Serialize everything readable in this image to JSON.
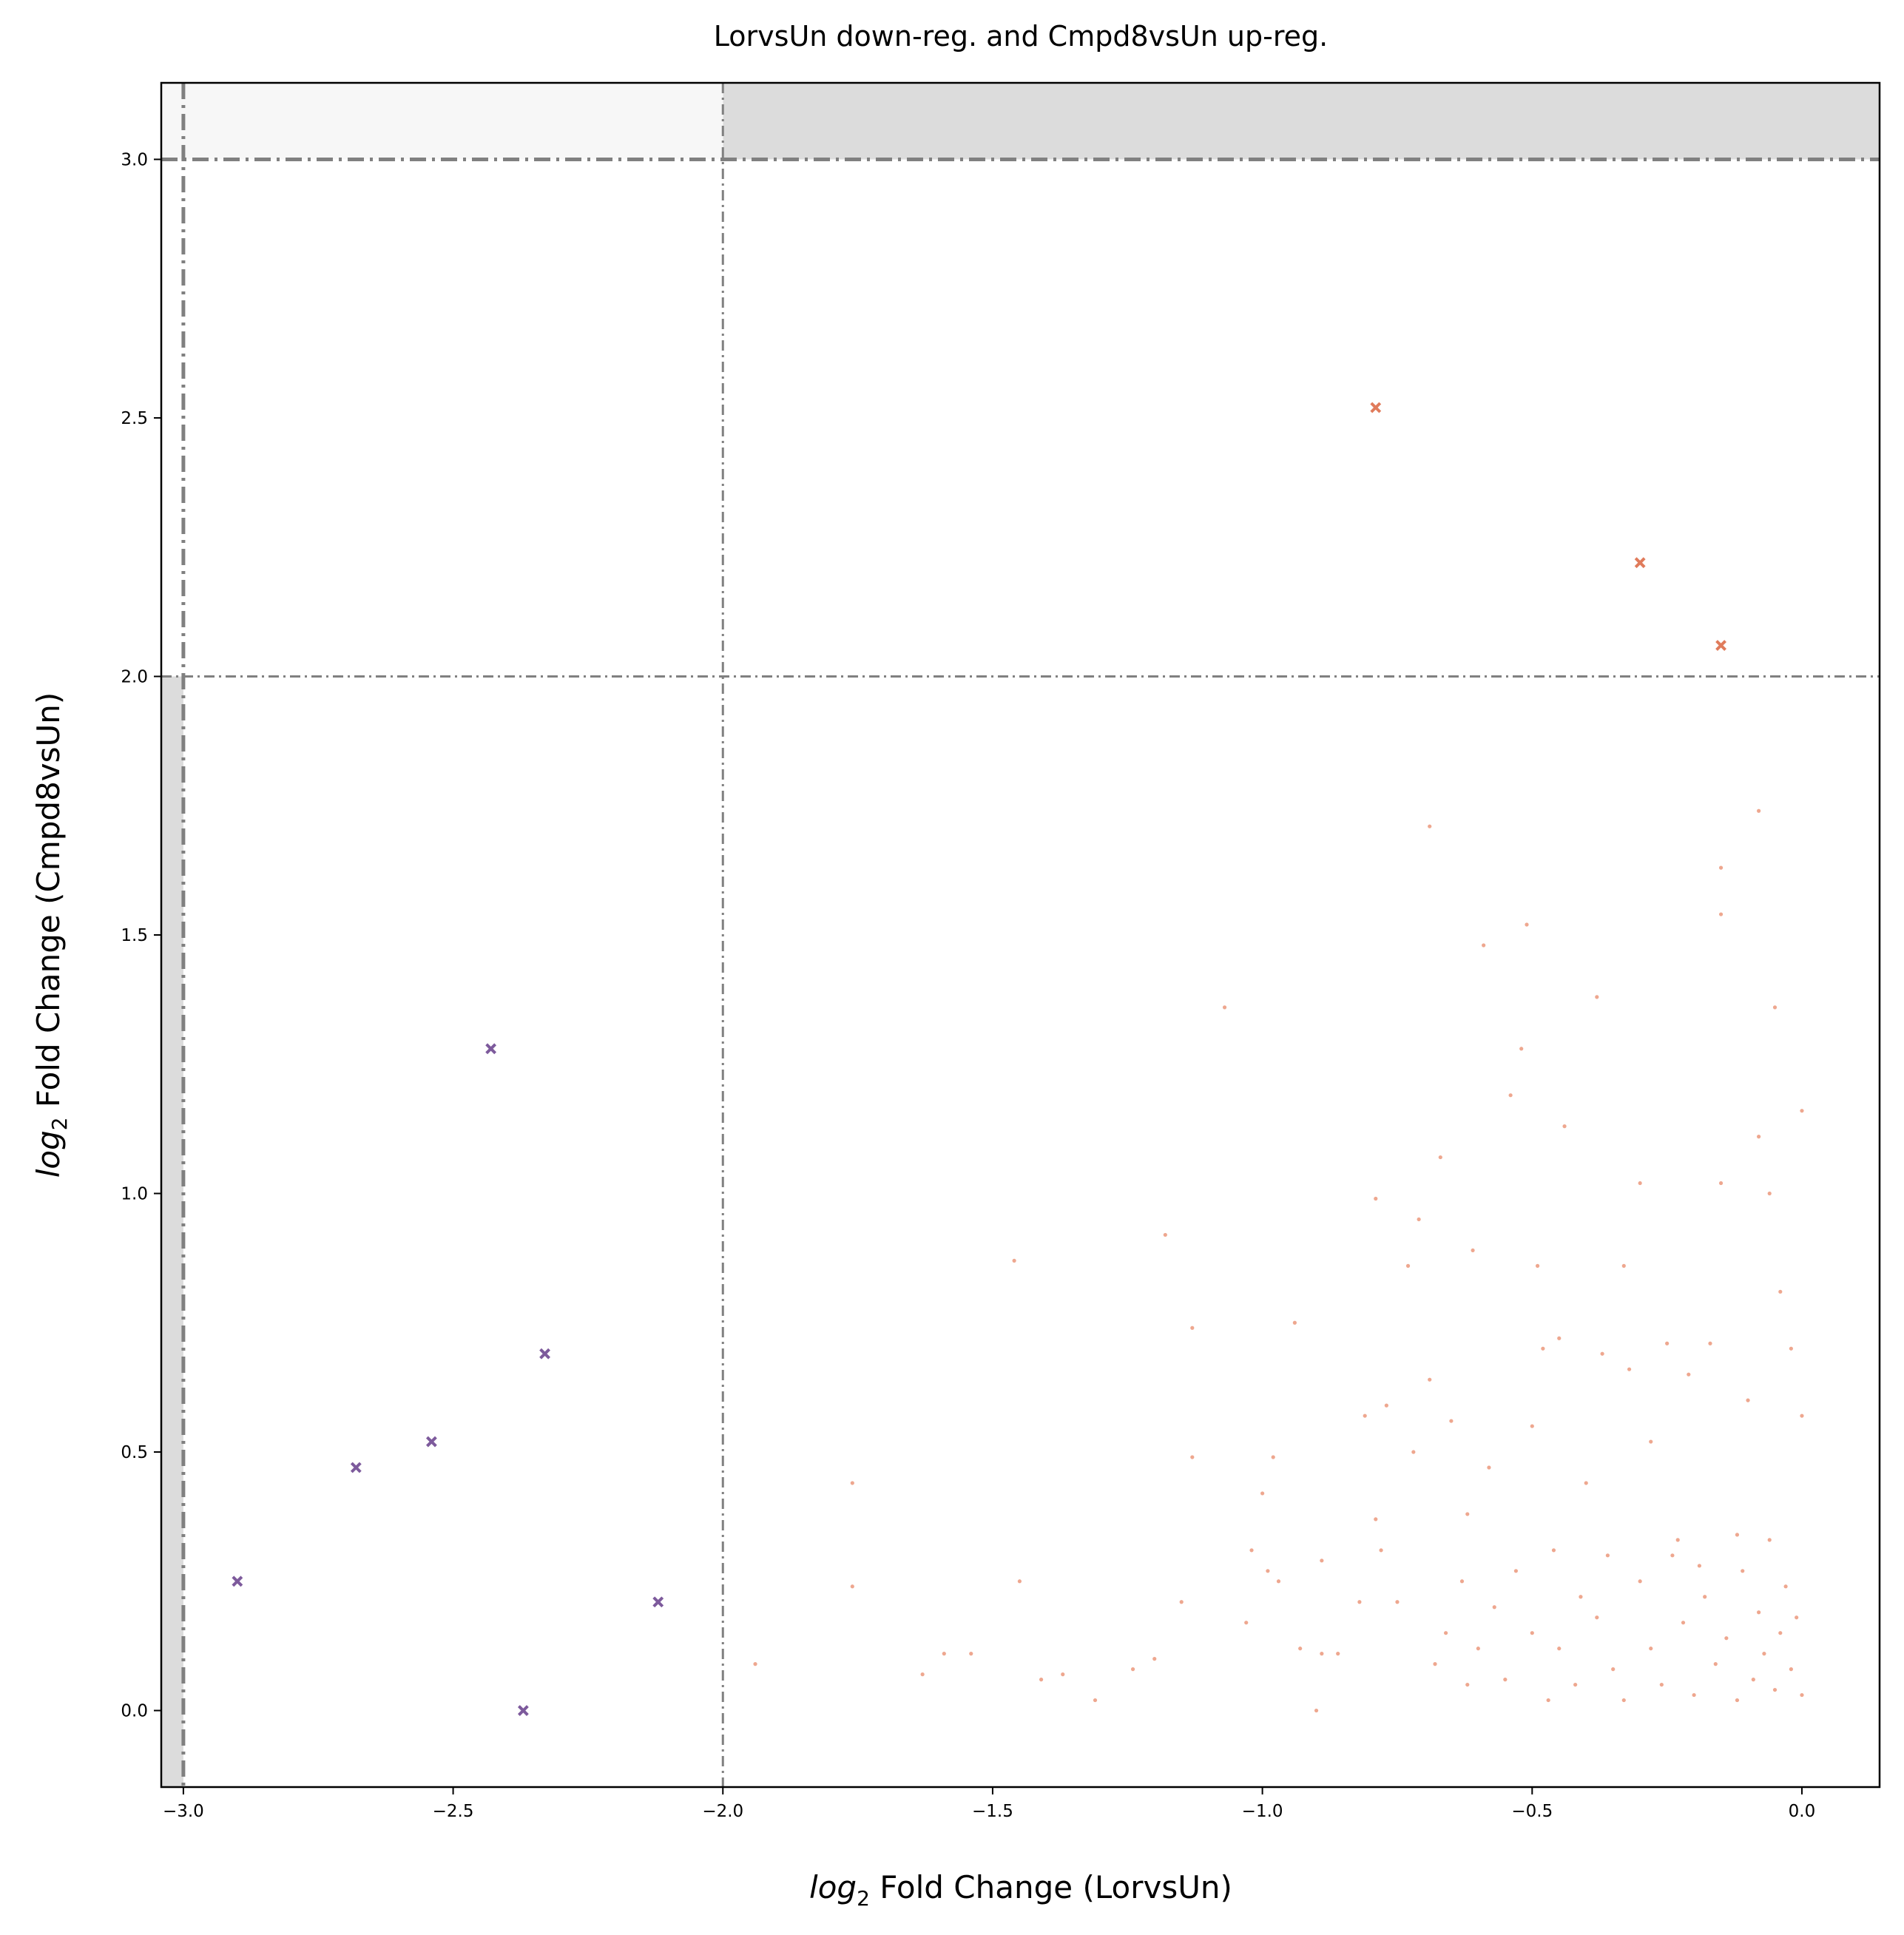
{
  "chart_data": {
    "type": "scatter",
    "title": "LorvsUn down-reg. and Cmpd8vsUn up-reg.",
    "xlabel": {
      "italic": "log",
      "sub": "2",
      "rest": " Fold Change (LorvsUn)"
    },
    "ylabel": {
      "italic": "log",
      "sub": "2",
      "rest": " Fold Change (Cmpd8vsUn)"
    },
    "xlim": [
      -3.041,
      0.144
    ],
    "ylim": [
      -0.148,
      3.148
    ],
    "xticks": [
      {
        "value": -3,
        "label": "−3.0"
      },
      {
        "value": -2.5,
        "label": "−2.5"
      },
      {
        "value": -2,
        "label": "−2.0"
      },
      {
        "value": -1.5,
        "label": "−1.5"
      },
      {
        "value": -1,
        "label": "−1.0"
      },
      {
        "value": -0.5,
        "label": "−0.5"
      },
      {
        "value": 0,
        "label": "0.0"
      }
    ],
    "yticks": [
      {
        "value": 0,
        "label": "0.0"
      },
      {
        "value": 0.5,
        "label": "0.5"
      },
      {
        "value": 1,
        "label": "1.0"
      },
      {
        "value": 1.5,
        "label": "1.5"
      },
      {
        "value": 2,
        "label": "2.0"
      },
      {
        "value": 2.5,
        "label": "2.5"
      },
      {
        "value": 3,
        "label": "3.0"
      }
    ],
    "vlines": [
      {
        "x": -3,
        "style": "thick"
      },
      {
        "x": -2,
        "style": "thin"
      }
    ],
    "hlines": [
      {
        "y": 3,
        "style": "thick"
      },
      {
        "y": 2,
        "style": "thin"
      }
    ],
    "shaded": [
      {
        "xmax": -3,
        "ymax": 2,
        "color": "#dcdcdc"
      },
      {
        "xmin": -2,
        "ymin": 3,
        "color": "#dcdcdc"
      },
      {
        "xmax": -2,
        "ymin": 3,
        "color": "#f7f7f7"
      }
    ],
    "series": [
      {
        "color": "#e8896a",
        "marker": "dot",
        "x": [
          -1.94,
          -1.76,
          -1.76,
          -1.63,
          -1.59,
          -1.54,
          -1.46,
          -1.45,
          -1.41,
          -1.37,
          -1.31,
          -1.24,
          -1.2,
          -1.18,
          -1.15,
          -1.13,
          -1.13,
          -1.07,
          -1.03,
          -1.02,
          -1.0,
          -0.99,
          -0.98,
          -0.97,
          -0.94,
          -0.93,
          -0.9,
          -0.89,
          -0.89,
          -0.86,
          -0.82,
          -0.81,
          -0.79,
          -0.79,
          -0.78,
          -0.77,
          -0.75,
          -0.73,
          -0.72,
          -0.71,
          -0.69,
          -0.69,
          -0.67,
          -0.66,
          -0.65,
          -0.63,
          -0.62,
          -0.61,
          -0.59,
          -0.58,
          -0.57,
          -0.55,
          -0.54,
          -0.52,
          -0.51,
          -0.5,
          -0.49,
          -0.48,
          -0.46,
          -0.45,
          -0.44,
          -0.41,
          -0.4,
          -0.38,
          -0.37,
          -0.36,
          -0.33,
          -0.32,
          -0.3,
          -0.28,
          -0.25,
          -0.23,
          -0.21,
          -0.19,
          -0.17,
          -0.15,
          -0.15,
          -0.15,
          -0.12,
          -0.1,
          -0.08,
          -0.08,
          -0.06,
          -0.05,
          -0.04,
          -0.02,
          0.0,
          0.0,
          -0.45,
          -0.42,
          -0.38,
          -0.35,
          -0.33,
          -0.3,
          -0.28,
          -0.26,
          -0.24,
          -0.22,
          -0.2,
          -0.18,
          -0.16,
          -0.14,
          -0.12,
          -0.11,
          -0.09,
          -0.08,
          -0.07,
          -0.06,
          -0.05,
          -0.04,
          -0.03,
          -0.02,
          -0.01,
          0.0,
          -0.6,
          -0.62,
          -0.68,
          -0.5,
          -0.53,
          -0.47
        ],
        "values": [
          0.09,
          0.44,
          0.24,
          0.07,
          0.11,
          0.11,
          0.87,
          0.25,
          0.06,
          0.07,
          0.02,
          0.08,
          0.1,
          0.92,
          0.21,
          0.74,
          0.49,
          1.36,
          0.17,
          0.31,
          0.42,
          0.27,
          0.49,
          0.25,
          0.75,
          0.12,
          0.0,
          0.29,
          0.11,
          0.11,
          0.21,
          0.57,
          0.99,
          0.37,
          0.31,
          0.59,
          0.21,
          0.86,
          0.5,
          0.95,
          1.71,
          0.64,
          1.07,
          0.15,
          0.56,
          0.25,
          0.38,
          0.89,
          1.48,
          0.47,
          0.2,
          0.06,
          1.19,
          1.28,
          1.52,
          0.55,
          0.86,
          0.7,
          0.31,
          0.72,
          1.13,
          0.22,
          0.44,
          1.38,
          0.69,
          0.3,
          0.86,
          0.66,
          1.02,
          0.52,
          0.71,
          0.33,
          0.65,
          0.28,
          0.71,
          1.63,
          1.54,
          1.02,
          0.34,
          0.6,
          1.74,
          1.11,
          1.0,
          1.36,
          0.81,
          0.7,
          1.16,
          0.57,
          0.12,
          0.05,
          0.18,
          0.08,
          0.02,
          0.25,
          0.12,
          0.05,
          0.3,
          0.17,
          0.03,
          0.22,
          0.09,
          0.14,
          0.02,
          0.27,
          0.06,
          0.19,
          0.11,
          0.33,
          0.04,
          0.15,
          0.24,
          0.08,
          0.18,
          0.03,
          0.12,
          0.05,
          0.09,
          0.15,
          0.27,
          0.02
        ]
      },
      {
        "color": "#7d5a9c",
        "marker": "x",
        "x": [
          -2.9,
          -2.68,
          -2.54,
          -2.43,
          -2.33,
          -2.37,
          -2.12
        ],
        "values": [
          0.25,
          0.47,
          0.52,
          1.28,
          0.69,
          0.0,
          0.21
        ]
      },
      {
        "color": "#e07b5b",
        "marker": "x",
        "x": [
          -0.79,
          -0.3,
          -0.15
        ],
        "values": [
          2.52,
          2.22,
          2.06
        ]
      }
    ]
  }
}
